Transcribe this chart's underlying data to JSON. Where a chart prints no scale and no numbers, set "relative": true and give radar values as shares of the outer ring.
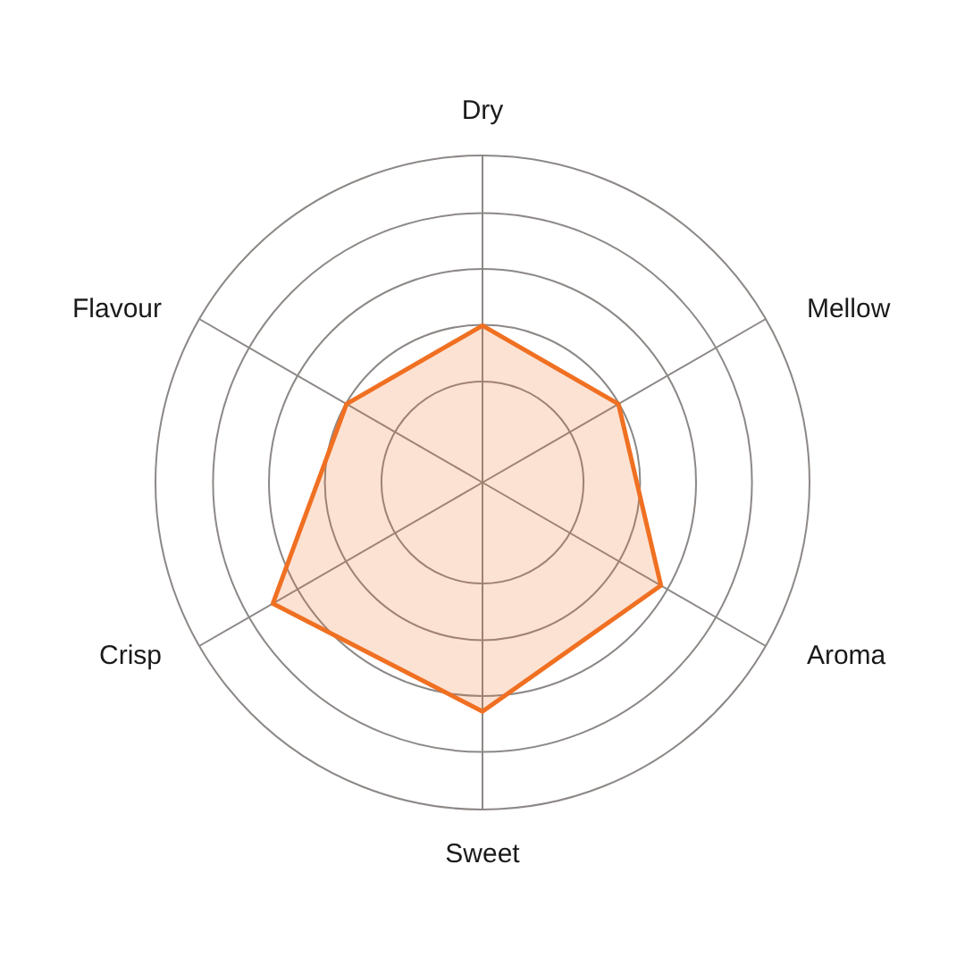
{
  "chart_data": {
    "type": "radar",
    "categories": [
      "Dry",
      "Mellow",
      "Aroma",
      "Sweet",
      "Crisp",
      "Flavour"
    ],
    "relative": true,
    "grid": true,
    "series": [
      {
        "color": "#f07022",
        "values": [
          0.48,
          0.48,
          0.63,
          0.7,
          0.74,
          0.48
        ]
      }
    ]
  }
}
